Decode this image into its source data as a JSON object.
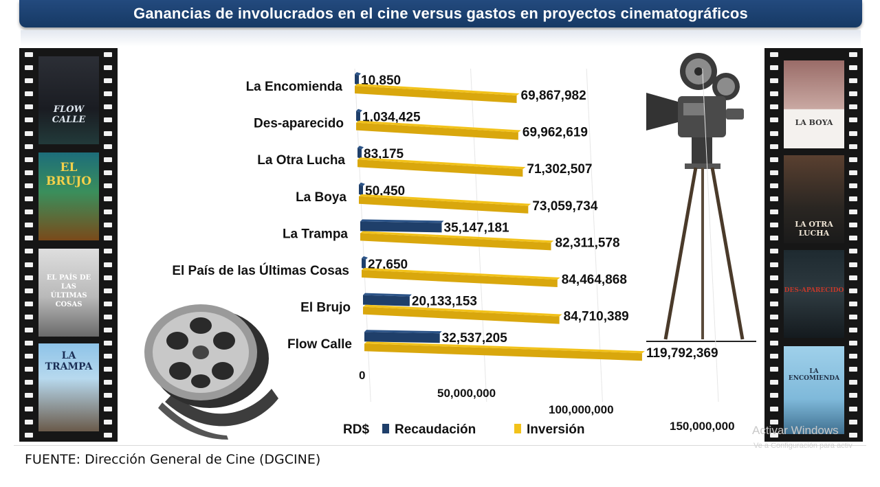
{
  "title": "Ganancias de involucrados en el cine versus gastos en proyectos cinematográficos",
  "source": "FUENTE: Dirección General de Cine (DGCINE)",
  "watermark": {
    "line1": "Activar Windows",
    "line2": "Ve a Configuración para activ"
  },
  "posters": {
    "left": [
      "FLOW CALLE",
      "EL BRUJO",
      "EL PAÍS DE LAS ÚLTIMAS COSAS",
      "LA TRAMPA"
    ],
    "right": [
      "LA BOYA",
      "LA OTRA LUCHA",
      "DES-APARECIDO",
      "LA ENCOMIENDA"
    ]
  },
  "colors": {
    "recaudacion": "#1f3f6a",
    "inversion": "#f2c21a",
    "title_bar": "#1b4373"
  },
  "chart_data": {
    "type": "bar",
    "orientation": "horizontal",
    "categories": [
      "La Encomienda",
      "Des-aparecido",
      "La Otra Lucha",
      "La Boya",
      "La Trampa",
      "El País de las Últimas Cosas",
      "El Brujo",
      "Flow Calle"
    ],
    "series": [
      {
        "name": "Recaudación",
        "values": [
          10850,
          1034425,
          83175,
          50450,
          35147181,
          27650,
          20133153,
          32537205
        ],
        "labels": [
          "10,850",
          "1,034,425",
          "83,175",
          "50,450",
          "35,147,181",
          "27,650",
          "20,133,153",
          "32,537,205"
        ]
      },
      {
        "name": "Inversión",
        "values": [
          69867982,
          69962619,
          71302507,
          73059734,
          82311578,
          84464868,
          84710389,
          119792369
        ],
        "labels": [
          "69,867,982",
          "69,962,619",
          "71,302,507",
          "73,059,734",
          "82,311,578",
          "84,464,868",
          "84,710,389",
          "119,792,369"
        ]
      }
    ],
    "xlim": [
      0,
      150000000
    ],
    "x_ticks": [
      "0",
      "50,000,000",
      "100,000,000",
      "150,000,000"
    ],
    "legend": {
      "prefix": "RD$",
      "position": "bottom"
    },
    "grid": "vertical"
  }
}
